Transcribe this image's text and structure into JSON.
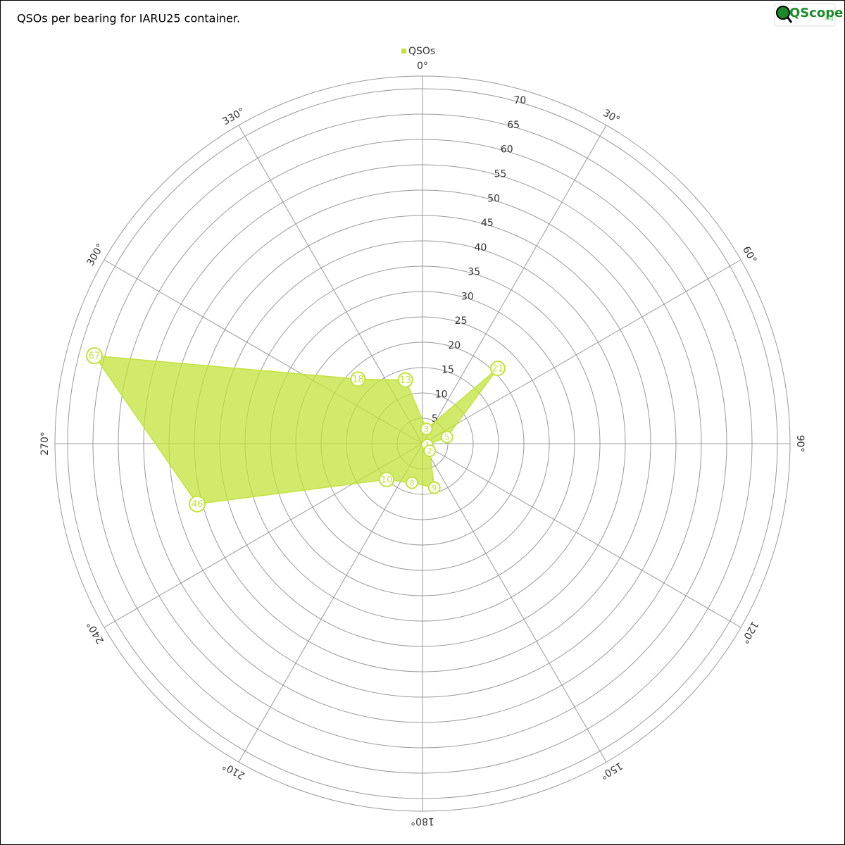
{
  "chart_data": {
    "type": "polar-area",
    "title": "QSOs per bearing for IARU25 container.",
    "logo": {
      "name": "QScope",
      "suffix": ".org"
    },
    "x": [
      15,
      45,
      75,
      105,
      135,
      165,
      195,
      225,
      255,
      285,
      315,
      345
    ],
    "series": [
      {
        "name": "QSOs",
        "color": "#c2e33a",
        "values": [
          3,
          21,
          5,
          1,
          2,
          9,
          8,
          10,
          46,
          67,
          18,
          13
        ]
      }
    ],
    "xlim": [
      0,
      360
    ],
    "xticks": [
      {
        "value": 0,
        "label": "0°"
      },
      {
        "value": 30,
        "label": "30°"
      },
      {
        "value": 60,
        "label": "60°"
      },
      {
        "value": 90,
        "label": "90°"
      },
      {
        "value": 120,
        "label": "120°"
      },
      {
        "value": 150,
        "label": "150°"
      },
      {
        "value": 180,
        "label": "180°"
      },
      {
        "value": 210,
        "label": "210°"
      },
      {
        "value": 240,
        "label": "240°"
      },
      {
        "value": 270,
        "label": "270°"
      },
      {
        "value": 300,
        "label": "300°"
      },
      {
        "value": 330,
        "label": "330°"
      }
    ],
    "ylim": [
      0,
      72.5
    ],
    "yticks": [
      5,
      10,
      15,
      20,
      25,
      30,
      35,
      40,
      45,
      50,
      55,
      60,
      65,
      70
    ],
    "grid": true,
    "legend": "top"
  }
}
